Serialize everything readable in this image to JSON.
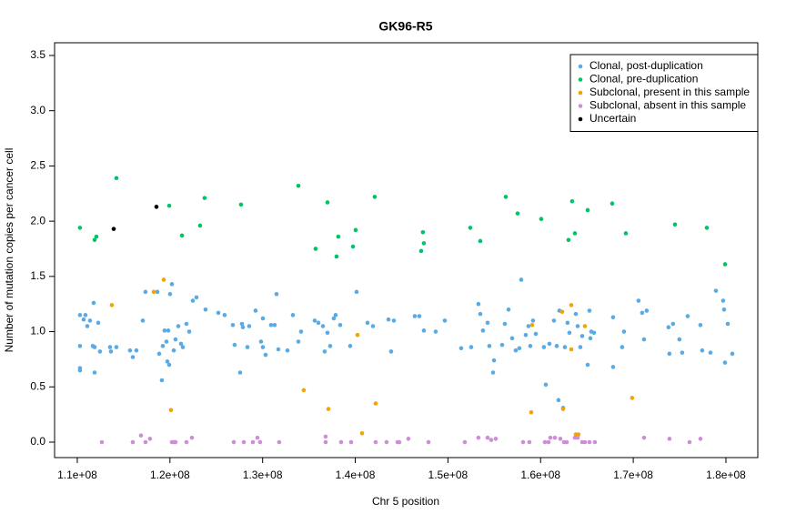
{
  "chart_data": {
    "type": "scatter",
    "title": "GK96-R5",
    "xlabel": "Chr 5 position",
    "ylabel": "Number of mutation copies per cancer cell",
    "xlim": [
      107550000.0,
      183440000.0
    ],
    "ylim": [
      -0.14,
      3.615
    ],
    "xticks": [
      {
        "value": 110000000.0,
        "label": "1.1e+08"
      },
      {
        "value": 120000000.0,
        "label": "1.2e+08"
      },
      {
        "value": 130000000.0,
        "label": "1.3e+08"
      },
      {
        "value": 140000000.0,
        "label": "1.4e+08"
      },
      {
        "value": 150000000.0,
        "label": "1.5e+08"
      },
      {
        "value": 160000000.0,
        "label": "1.6e+08"
      },
      {
        "value": 170000000.0,
        "label": "1.7e+08"
      },
      {
        "value": 180000000.0,
        "label": "1.8e+08"
      }
    ],
    "yticks": [
      {
        "value": 0,
        "label": "0.0"
      },
      0.5,
      {
        "value": 1,
        "label": "1.0"
      },
      1.5,
      {
        "value": 2,
        "label": "2.0"
      },
      2.5,
      {
        "value": 3,
        "label": "3.0"
      },
      3.5
    ],
    "grid": false,
    "legend": "topright",
    "series": [
      {
        "name": "Clonal, post-duplication",
        "color": "#5aaae3",
        "x": [
          110290000.0,
          110290000.0,
          110290000.0,
          110290000.0,
          110690000.0,
          110880000.0,
          111080000.0,
          111370000.0,
          111670000.0,
          111870000.0,
          111770000.0,
          111870000.0,
          112260000.0,
          112450000.0,
          113530000.0,
          113630000.0,
          114220000.0,
          115690000.0,
          115990000.0,
          116380000.0,
          117070000.0,
          117360000.0,
          118640000.0,
          118840000.0,
          119130000.0,
          119230000.0,
          119420000.0,
          119620000.0,
          119820000.0,
          119720000.0,
          119920000.0,
          120010000.0,
          120210000.0,
          120410000.0,
          120600000.0,
          120900000.0,
          121190000.0,
          121390000.0,
          121780000.0,
          122080000.0,
          122470000.0,
          122860000.0,
          123840000.0,
          125220000.0,
          125900000.0,
          126790000.0,
          126980000.0,
          127570000.0,
          127770000.0,
          127870000.0,
          128360000.0,
          128550000.0,
          129240000.0,
          129830000.0,
          130030000.0,
          130030000.0,
          130320000.0,
          130910000.0,
          131300000.0,
          131500000.0,
          131700000.0,
          132680000.0,
          133270000.0,
          133860000.0,
          134150000.0,
          135620000.0,
          136020000.0,
          136510000.0,
          136700000.0,
          137000000.0,
          137290000.0,
          137680000.0,
          137880000.0,
          138370000.0,
          139450000.0,
          140140000.0,
          141320000.0,
          141910000.0,
          143580000.0,
          143870000.0,
          144160000.0,
          146420000.0,
          146910000.0,
          147400000.0,
          148680000.0,
          149660000.0,
          151430000.0,
          152510000.0,
          153290000.0,
          153490000.0,
          153780000.0,
          154280000.0,
          154470000.0,
          154870000.0,
          154970000.0,
          155850000.0,
          156140000.0,
          156540000.0,
          156930000.0,
          157320000.0,
          157710000.0,
          157910000.0,
          158400000.0,
          158690000.0,
          158890000.0,
          159180000.0,
          159480000.0,
          160360000.0,
          160560000.0,
          160950000.0,
          161440000.0,
          161740000.0,
          161930000.0,
          162030000.0,
          162430000.0,
          162620000.0,
          162910000.0,
          163110000.0,
          163800000.0,
          164000000.0,
          164290000.0,
          164490000.0,
          165080000.0,
          165270000.0,
          165370000.0,
          165470000.0,
          165760000.0,
          167820000.0,
          167820000.0,
          168800000.0,
          169000000.0,
          170570000.0,
          170960000.0,
          171160000.0,
          171450000.0,
          173800000.0,
          173900000.0,
          174290000.0,
          174980000.0,
          175280000.0,
          175870000.0,
          177250000.0,
          177440000.0,
          178330000.0,
          178920000.0,
          179700000.0,
          179800000.0,
          179900000.0,
          180200000.0,
          180690000.0
        ],
        "values": [
          1.15,
          0.87,
          0.67,
          0.65,
          1.11,
          1.15,
          1.05,
          1.1,
          0.87,
          0.86,
          1.26,
          0.63,
          1.08,
          0.82,
          0.86,
          0.82,
          0.86,
          0.83,
          0.77,
          0.83,
          1.1,
          1.36,
          1.36,
          0.8,
          0.56,
          0.87,
          1.01,
          0.91,
          1.01,
          0.73,
          0.7,
          1.34,
          1.43,
          0.83,
          0.93,
          1.05,
          0.89,
          0.86,
          1.07,
          1.0,
          1.28,
          1.31,
          1.2,
          1.17,
          1.15,
          1.06,
          0.88,
          0.63,
          1.07,
          1.04,
          0.86,
          1.05,
          1.19,
          0.91,
          1.12,
          0.86,
          0.79,
          1.06,
          1.06,
          1.34,
          0.84,
          0.83,
          1.15,
          0.91,
          1.0,
          1.1,
          1.08,
          1.05,
          0.82,
          0.99,
          0.87,
          1.12,
          1.15,
          1.06,
          0.87,
          1.36,
          1.08,
          1.05,
          1.11,
          0.82,
          1.1,
          1.14,
          1.14,
          1.01,
          1.0,
          1.1,
          0.85,
          0.86,
          1.25,
          1.16,
          1.01,
          1.08,
          0.87,
          0.63,
          0.74,
          0.88,
          1.07,
          1.2,
          0.94,
          0.83,
          0.85,
          1.47,
          0.97,
          1.05,
          0.87,
          1.1,
          0.98,
          0.86,
          0.52,
          0.89,
          1.1,
          0.87,
          0.38,
          1.19,
          0.31,
          0.86,
          1.08,
          0.99,
          1.16,
          1.05,
          0.86,
          0.96,
          0.7,
          1.19,
          0.94,
          1.0,
          0.99,
          1.13,
          0.68,
          0.86,
          1.0,
          1.28,
          1.17,
          0.93,
          1.19,
          1.04,
          0.8,
          1.07,
          0.93,
          0.81,
          1.14,
          1.06,
          0.83,
          0.81,
          1.37,
          1.28,
          1.2,
          0.72,
          1.07,
          0.8
        ]
      },
      {
        "name": "Clonal, pre-duplication",
        "color": "#00c466",
        "x": [
          110290000.0,
          111870000.0,
          112060000.0,
          114220000.0,
          119920000.0,
          121300000.0,
          123250000.0,
          123740000.0,
          127670000.0,
          133860000.0,
          135720000.0,
          137000000.0,
          137980000.0,
          138170000.0,
          139750000.0,
          140040000.0,
          142100000.0,
          147110000.0,
          147300000.0,
          147400000.0,
          152410000.0,
          153490000.0,
          156240000.0,
          157520000.0,
          160070000.0,
          163010000.0,
          163400000.0,
          163700000.0,
          165080000.0,
          167730000.0,
          169200000.0,
          174500000.0,
          177940000.0,
          179910000.0
        ],
        "values": [
          1.94,
          1.83,
          1.86,
          2.39,
          2.14,
          1.87,
          1.96,
          2.21,
          2.15,
          2.32,
          1.75,
          2.17,
          1.68,
          1.86,
          1.77,
          1.92,
          2.22,
          1.73,
          1.9,
          1.8,
          1.94,
          1.82,
          2.22,
          2.07,
          2.02,
          1.83,
          2.18,
          1.89,
          2.1,
          2.16,
          1.89,
          1.97,
          1.94,
          1.61
        ]
      },
      {
        "name": "Subclonal, present in this sample",
        "color": "#f5a300",
        "x": [
          113730000.0,
          118250000.0,
          119330000.0,
          120110000.0,
          134440000.0,
          137100000.0,
          140240000.0,
          140730000.0,
          142200000.0,
          158990000.0,
          159090000.0,
          162330000.0,
          162430000.0,
          163310000.0,
          163310000.0,
          163800000.0,
          164090000.0,
          164780000.0,
          169880000.0
        ],
        "values": [
          1.24,
          1.36,
          1.47,
          0.29,
          0.47,
          0.3,
          0.97,
          0.08,
          0.35,
          0.27,
          1.06,
          1.18,
          0.3,
          1.24,
          0.84,
          0.07,
          0.07,
          1.05,
          0.4
        ]
      },
      {
        "name": "Subclonal, absent in this sample",
        "color": "#cc8fd6",
        "x": [
          112650000.0,
          115990000.0,
          116870000.0,
          117360000.0,
          117850000.0,
          120210000.0,
          120410000.0,
          120600000.0,
          121780000.0,
          122370000.0,
          126890000.0,
          127970000.0,
          128950000.0,
          129440000.0,
          129730000.0,
          131790000.0,
          136800000.0,
          136800000.0,
          138470000.0,
          139550000.0,
          142200000.0,
          143380000.0,
          144560000.0,
          144750000.0,
          145730000.0,
          147900000.0,
          151820000.0,
          153290000.0,
          154280000.0,
          154670000.0,
          155160000.0,
          158110000.0,
          158790000.0,
          160460000.0,
          160850000.0,
          161050000.0,
          161540000.0,
          162130000.0,
          162520000.0,
          162820000.0,
          163700000.0,
          164000000.0,
          164490000.0,
          164780000.0,
          165270000.0,
          165860000.0,
          171160000.0,
          173910000.0,
          176070000.0,
          177250000.0
        ],
        "values": [
          0,
          0,
          0.06,
          0,
          0.03,
          0,
          0,
          0,
          0,
          0.04,
          0,
          0,
          0,
          0.04,
          0,
          0,
          0.05,
          0,
          0,
          0,
          0,
          0,
          0,
          0,
          0.03,
          0,
          0,
          0.04,
          0.04,
          0.02,
          0.03,
          0,
          0,
          0,
          0,
          0.04,
          0.04,
          0.03,
          0,
          0,
          0.04,
          0.04,
          0,
          0,
          0,
          0,
          0.04,
          0.03,
          0,
          0.03
        ]
      },
      {
        "name": "Uncertain",
        "color": "#000000",
        "x": [
          113930000.0,
          118540000.0
        ],
        "values": [
          1.93,
          2.13
        ]
      }
    ]
  }
}
